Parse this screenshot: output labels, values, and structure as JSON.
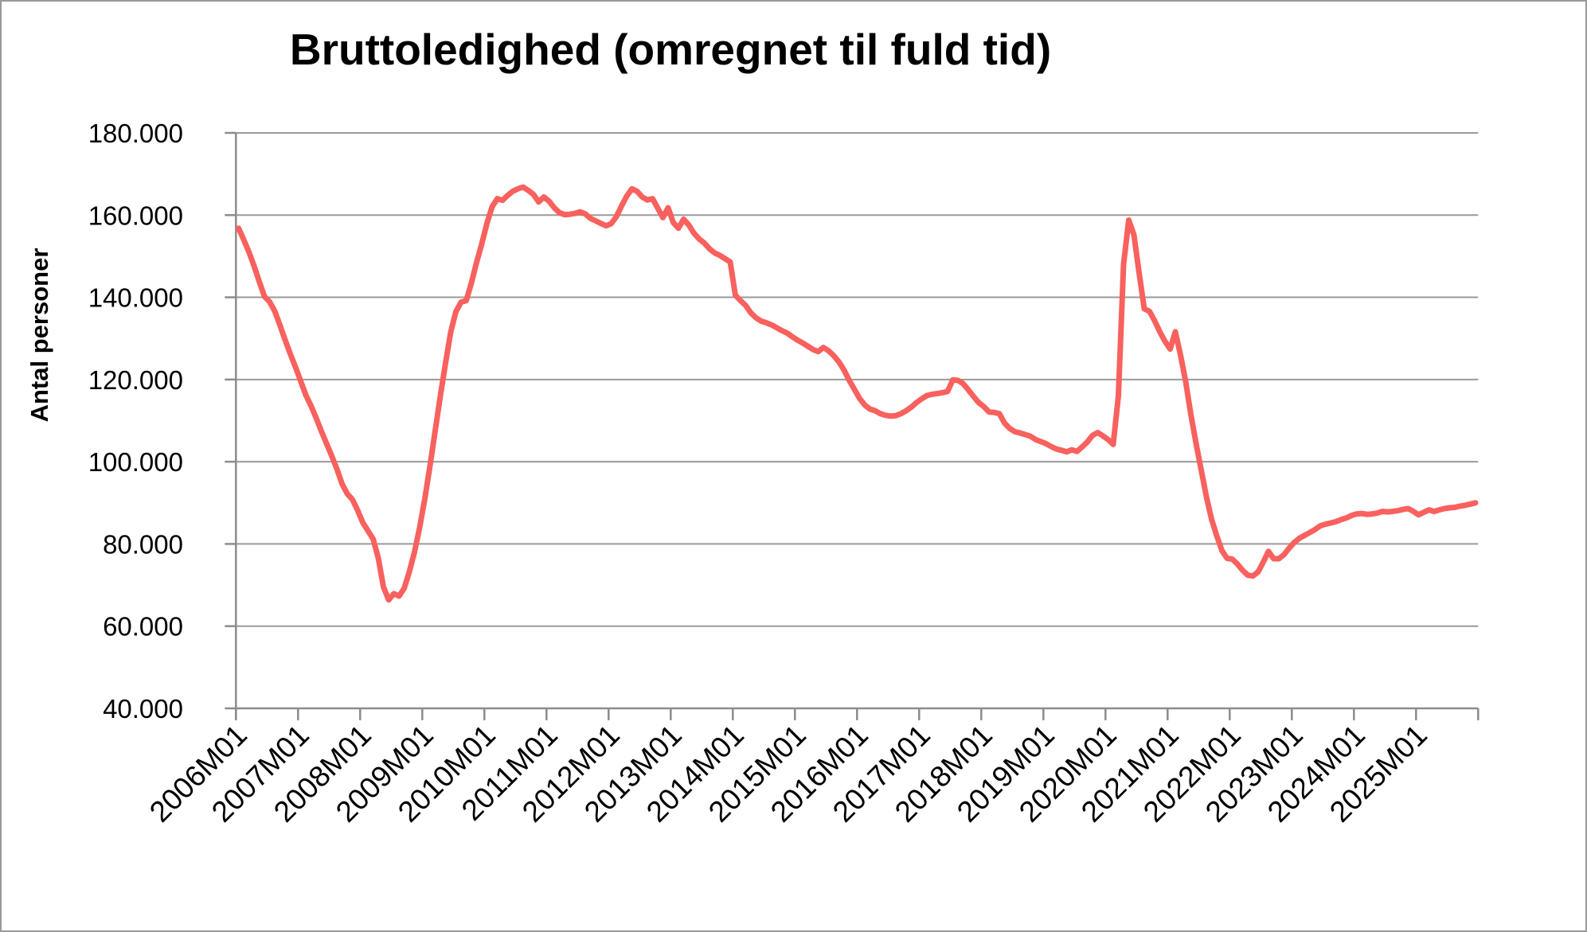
{
  "title": "Bruttoledighed (omregnet til fuld tid)",
  "y_axis": {
    "label": "Antal personer",
    "tick_labels": [
      "40.000",
      "60.000",
      "80.000",
      "100.000",
      "120.000",
      "140.000",
      "160.000",
      "180.000"
    ],
    "min": 40000,
    "max": 180000,
    "step": 20000
  },
  "x_axis": {
    "tick_labels": [
      "2006M01",
      "2007M01",
      "2008M01",
      "2009M01",
      "2010M01",
      "2011M01",
      "2012M01",
      "2013M01",
      "2014M01",
      "2015M01",
      "2016M01",
      "2017M01",
      "2018M01",
      "2019M01",
      "2020M01",
      "2021M01",
      "2022M01",
      "2023M01",
      "2024M01",
      "2025M01"
    ],
    "tick_every_months": 12
  },
  "colors": {
    "line": "#f8615e",
    "grid": "#9a9a9a",
    "axis": "#8c8c8c",
    "frame": "#999999",
    "text": "#000000",
    "background": "#ffffff"
  },
  "chart_data": {
    "type": "line",
    "title": "Bruttoledighed (omregnet til fuld tid)",
    "ylabel": "Antal personer",
    "xlabel": "",
    "ylim": [
      40000,
      180000
    ],
    "grid": "horizontal",
    "legend": "none",
    "frequency": "monthly",
    "start_period": "2006M01",
    "end_period": "2025M12",
    "series": [
      {
        "name": "Bruttoledighed (omregnet til fuld tid)",
        "unit": "personer",
        "values": [
          156800,
          154000,
          151000,
          147600,
          143800,
          140200,
          138900,
          136600,
          133200,
          129600,
          126200,
          123000,
          119600,
          116200,
          113600,
          110600,
          107400,
          104400,
          101400,
          98200,
          94600,
          92200,
          90800,
          88200,
          85200,
          83200,
          81200,
          76500,
          69500,
          66400,
          67900,
          67300,
          69200,
          73200,
          78000,
          84000,
          91000,
          99000,
          107500,
          116000,
          124000,
          131500,
          136500,
          138800,
          139200,
          143500,
          148500,
          153000,
          158000,
          162000,
          164000,
          163600,
          164800,
          165800,
          166400,
          166800,
          166000,
          165000,
          163200,
          164400,
          163400,
          161800,
          160600,
          160100,
          160200,
          160400,
          160800,
          160300,
          159200,
          158600,
          158000,
          157400,
          157900,
          159600,
          162200,
          164600,
          166400,
          165800,
          164400,
          163700,
          164000,
          161700,
          159400,
          161800,
          158200,
          156800,
          159000,
          157600,
          155600,
          154200,
          153200,
          151800,
          150800,
          150200,
          149400,
          148600,
          140500,
          139200,
          138000,
          136200,
          135000,
          134200,
          133800,
          133300,
          132600,
          131900,
          131300,
          130400,
          129600,
          128900,
          128100,
          127300,
          126800,
          127800,
          127000,
          125800,
          124300,
          122300,
          119800,
          117600,
          115400,
          113800,
          112800,
          112400,
          111700,
          111300,
          111100,
          111200,
          111700,
          112400,
          113300,
          114400,
          115300,
          116100,
          116400,
          116600,
          116800,
          117100,
          119900,
          119800,
          119000,
          117500,
          115900,
          114400,
          113400,
          112100,
          112000,
          111700,
          109400,
          108100,
          107300,
          107000,
          106600,
          106200,
          105400,
          104900,
          104400,
          103700,
          103100,
          102800,
          102400,
          102900,
          102500,
          103600,
          104800,
          106400,
          107100,
          106300,
          105400,
          104200,
          116000,
          148000,
          158800,
          155200,
          146000,
          137200,
          136600,
          134300,
          131600,
          129300,
          127400,
          131600,
          126000,
          119500,
          111500,
          104500,
          98000,
          91500,
          86000,
          82000,
          78400,
          76500,
          76300,
          75100,
          73600,
          72400,
          72200,
          73200,
          75600,
          78200,
          76400,
          76400,
          77400,
          79000,
          80400,
          81400,
          82100,
          82800,
          83500,
          84400,
          84800,
          85100,
          85400,
          85900,
          86300,
          86900,
          87300,
          87400,
          87200,
          87300,
          87500,
          87900,
          87800,
          87900,
          88100,
          88400,
          88600,
          87900,
          87100,
          87700,
          88300,
          87900,
          88300,
          88600,
          88800,
          88900,
          89200,
          89400,
          89700,
          90000
        ]
      }
    ]
  }
}
